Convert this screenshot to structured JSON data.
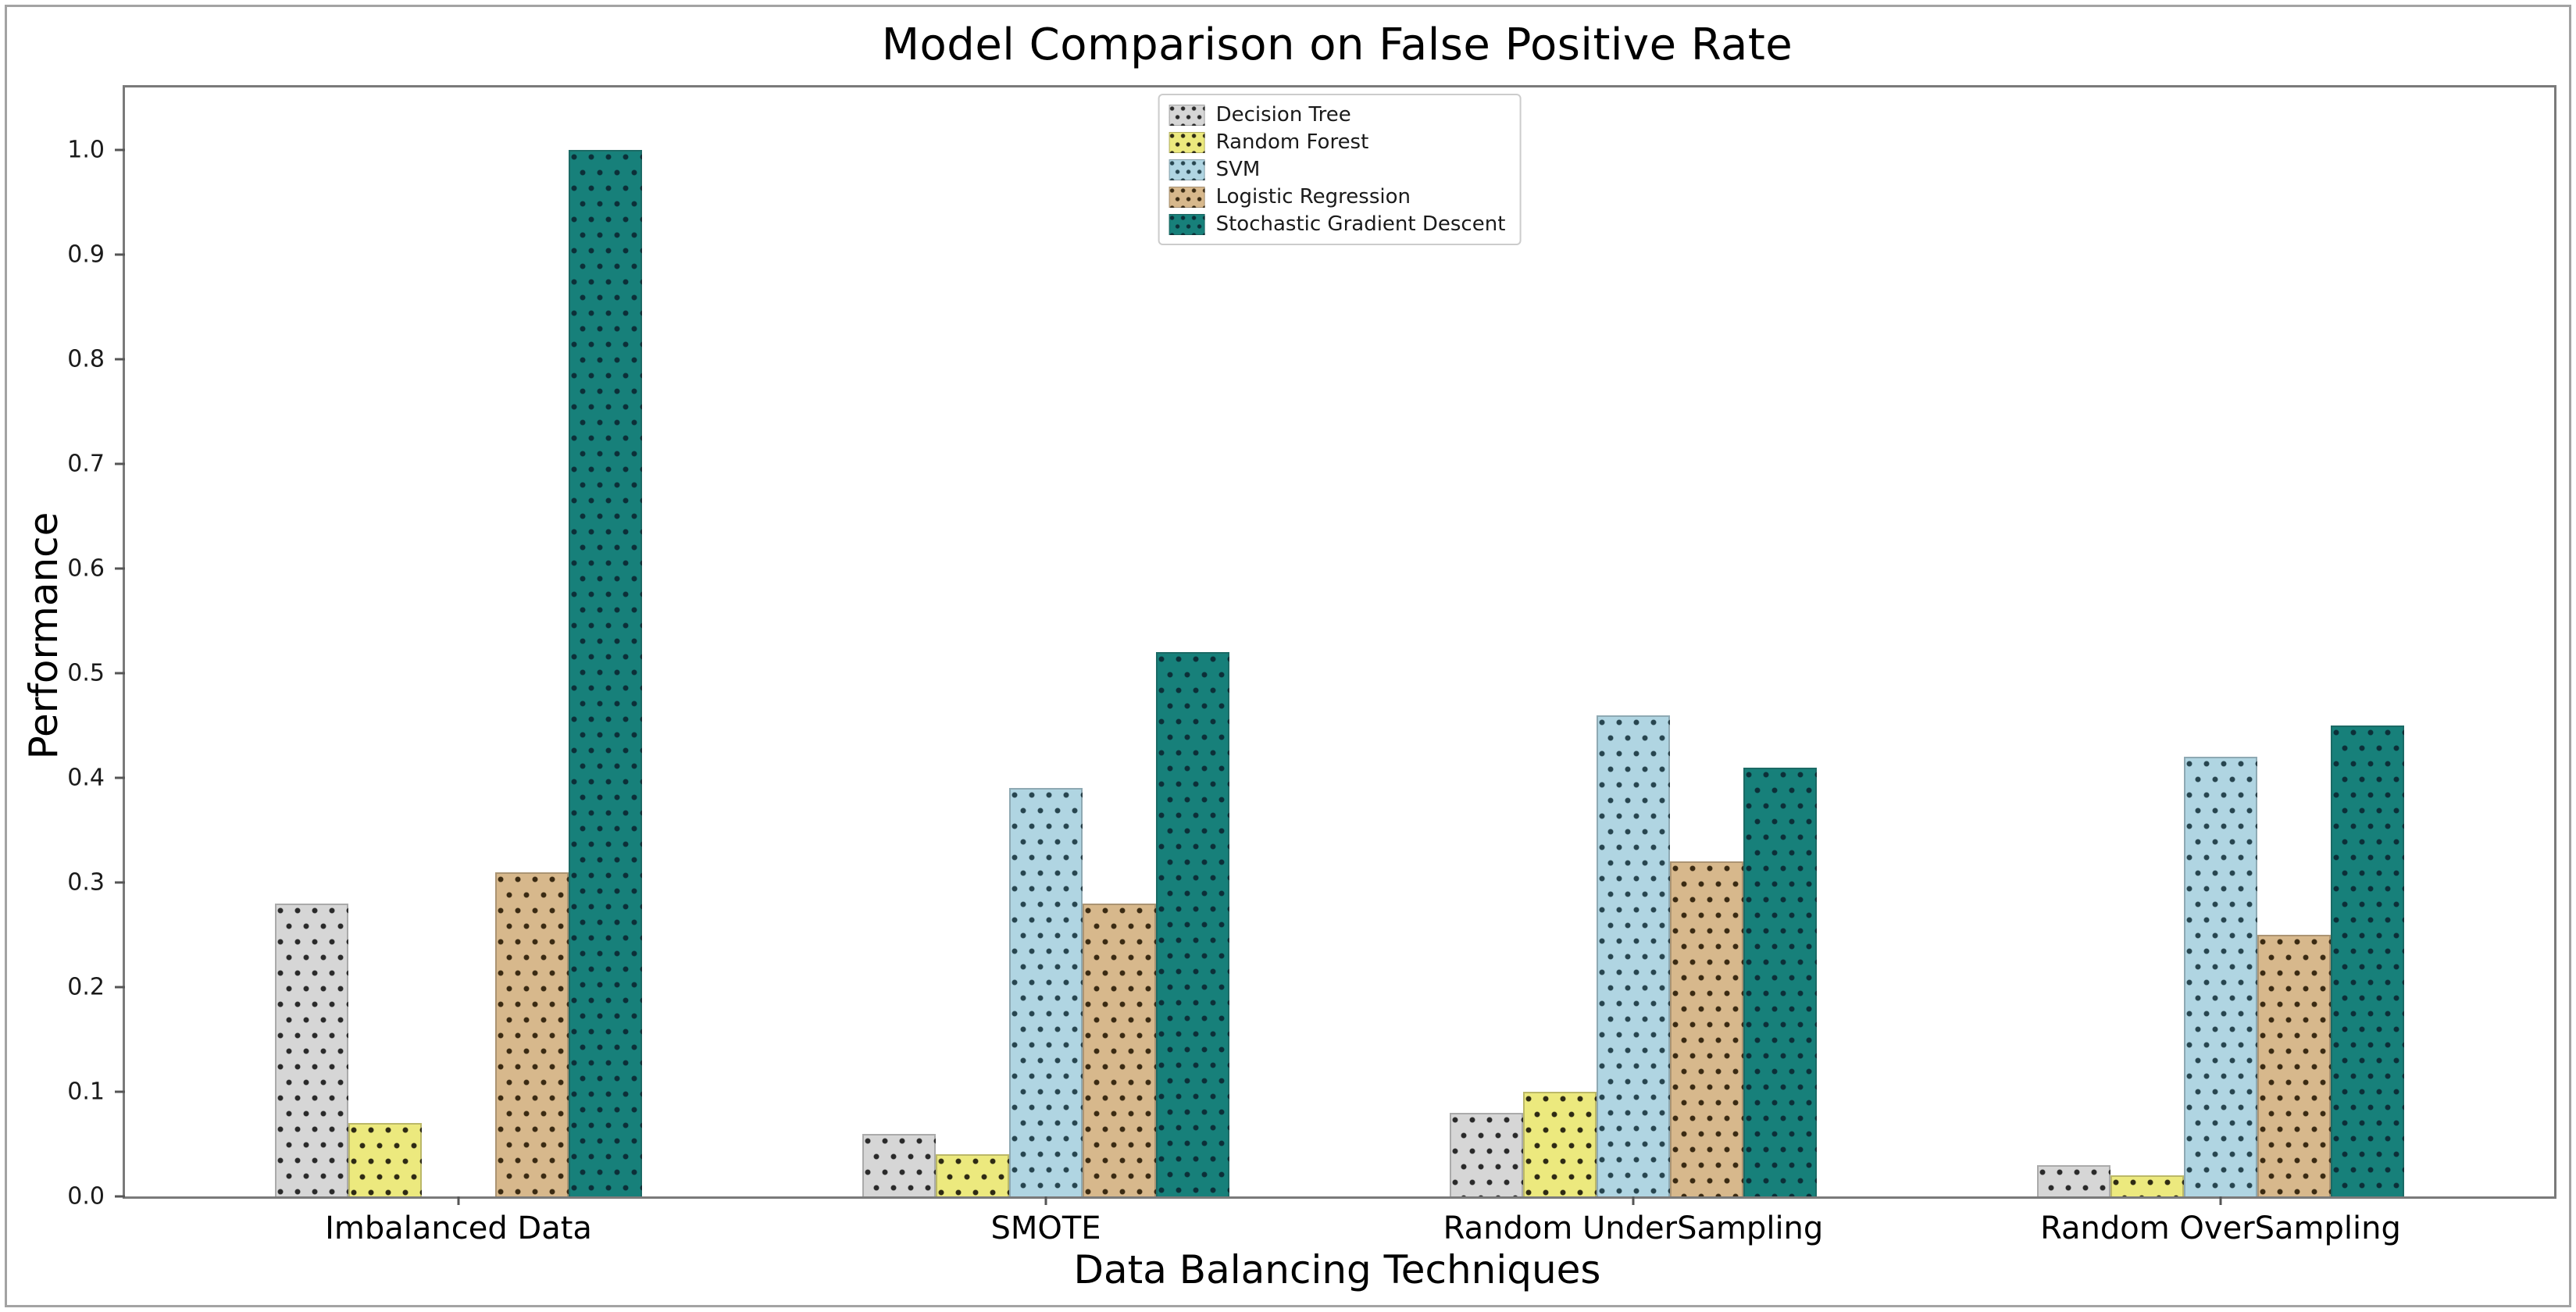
{
  "chart_data": {
    "type": "bar",
    "title": "Model Comparison on False Positive Rate",
    "xlabel": "Data Balancing Techniques",
    "ylabel": "Performance",
    "categories": [
      "Imbalanced Data",
      "SMOTE",
      "Random UnderSampling",
      "Random OverSampling"
    ],
    "series": [
      {
        "name": "Decision Tree",
        "color": "#d6d6d6",
        "dot_color": "#2a2a2a",
        "values": [
          0.28,
          0.06,
          0.08,
          0.03
        ]
      },
      {
        "name": "Random Forest",
        "color": "#ece97e",
        "dot_color": "#2e2a14",
        "values": [
          0.07,
          0.04,
          0.1,
          0.02
        ]
      },
      {
        "name": "SVM",
        "color": "#b0d5e2",
        "dot_color": "#27454f",
        "values": [
          0.0,
          0.39,
          0.46,
          0.42
        ]
      },
      {
        "name": "Logistic Regression",
        "color": "#d7b88c",
        "dot_color": "#3a2a12",
        "values": [
          0.31,
          0.28,
          0.32,
          0.25
        ]
      },
      {
        "name": "Stochastic Gradient Descent",
        "color": "#17807a",
        "dot_color": "#0c2f38",
        "values": [
          1.0,
          0.52,
          0.41,
          0.45
        ]
      }
    ],
    "yticks": [
      "0.0",
      "0.1",
      "0.2",
      "0.3",
      "0.4",
      "0.5",
      "0.6",
      "0.7",
      "0.8",
      "0.9",
      "1.0"
    ],
    "ylim": [
      0.0,
      1.06
    ],
    "hatch": "dots",
    "grid": false,
    "legend_position": "upper center",
    "axis_color": "#7a7a7a",
    "background": "#ffffff"
  }
}
